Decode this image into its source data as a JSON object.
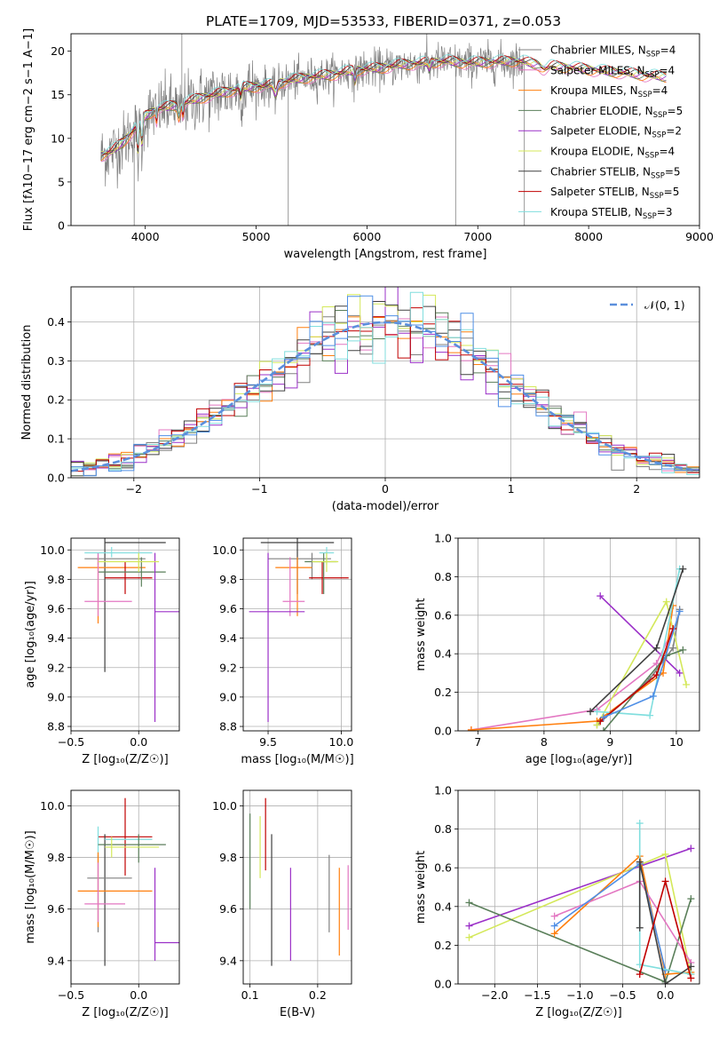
{
  "figure_title": "PLATE=1709, MJD=53533, FIBERID=0371, z=0.053",
  "colors": {
    "Chabrier MILES": "#808080",
    "Salpeter MILES": "#e377c2",
    "Kroupa MILES": "#ff7f0e",
    "Chabrier ELODIE": "#5a7f5a",
    "Salpeter ELODIE": "#9b30c8",
    "Kroupa ELODIE": "#d4e85a",
    "Chabrier STELIB": "#404040",
    "Salpeter STELIB": "#c00000",
    "Kroupa STELIB": "#80dede",
    "gaussian": "#5b8fdc",
    "blue_extra": "#4f8fe6"
  },
  "chart_data": [
    {
      "id": "spectrum",
      "type": "line",
      "xlabel": "wavelength [Angstrom, rest frame]",
      "ylabel_html": "Flux [f<tspan>λ</tspan>10<tspan>−17</tspan> erg cm<tspan>−2</tspan> s<tspan>−1</tspan> A<tspan>−1</tspan>]",
      "ylabel": "Flux [fλ10−17 erg cm−2 s−1 A−1]",
      "xlim": [
        3330,
        9000
      ],
      "ylim": [
        0,
        22
      ],
      "xticks": [
        4000,
        5000,
        6000,
        7000,
        8000,
        9000
      ],
      "yticks": [
        0,
        5,
        10,
        15,
        20
      ],
      "legend_position": "right",
      "legend": [
        {
          "model": "Chabrier MILES",
          "n": "4"
        },
        {
          "model": "Salpeter MILES",
          "n": "4"
        },
        {
          "model": "Kroupa MILES",
          "n": "4"
        },
        {
          "model": "Chabrier ELODIE",
          "n": "5"
        },
        {
          "model": "Salpeter ELODIE",
          "n": "2"
        },
        {
          "model": "Kroupa ELODIE",
          "n": "4"
        },
        {
          "model": "Chabrier STELIB",
          "n": "5"
        },
        {
          "model": "Salpeter STELIB",
          "n": "5"
        },
        {
          "model": "Kroupa STELIB",
          "n": "3"
        }
      ],
      "legend_prefix": ", N",
      "legend_sub": "SSP",
      "continuum": [
        [
          3600,
          8
        ],
        [
          3700,
          8.5
        ],
        [
          3800,
          9.5
        ],
        [
          3900,
          11
        ],
        [
          4000,
          12.5
        ],
        [
          4100,
          13.3
        ],
        [
          4300,
          13.8
        ],
        [
          4500,
          14.6
        ],
        [
          4700,
          15.2
        ],
        [
          4900,
          15.8
        ],
        [
          5100,
          16
        ],
        [
          5300,
          16.6
        ],
        [
          5500,
          17
        ],
        [
          5700,
          17.3
        ],
        [
          5900,
          17.8
        ],
        [
          6100,
          18
        ],
        [
          6300,
          18.4
        ],
        [
          6500,
          18.6
        ],
        [
          6700,
          18.8
        ],
        [
          6900,
          18.6
        ],
        [
          7100,
          18.7
        ],
        [
          7300,
          18.8
        ],
        [
          7400,
          18.8
        ],
        [
          7500,
          18.5
        ],
        [
          7700,
          18.2
        ],
        [
          7900,
          18
        ],
        [
          8100,
          17.7
        ],
        [
          8300,
          17.5
        ],
        [
          8500,
          17.2
        ],
        [
          8700,
          17
        ]
      ],
      "observed_range": [
        3600,
        7420
      ],
      "model_range": [
        3600,
        8700
      ]
    },
    {
      "id": "residuals",
      "type": "histogram",
      "xlabel": "(data-model)/error",
      "ylabel": "Normed distribution",
      "xlim": [
        -2.5,
        2.5
      ],
      "ylim": [
        0,
        0.49
      ],
      "xticks": [
        -2,
        -1,
        0,
        1,
        2
      ],
      "yticks": [
        0.0,
        0.1,
        0.2,
        0.3,
        0.4
      ],
      "legend_label": "𝒩(0, 1)",
      "bin_width": 0.1
    },
    {
      "id": "age_vs_Z",
      "type": "scatter",
      "xlabel": "Z [log₁₀(Z/Z☉)]",
      "ylabel": "age  [log₁₀(age/yr)]",
      "xlim": [
        -0.5,
        0.3
      ],
      "ylim": [
        8.77,
        10.08
      ],
      "xticks": [
        -0.5,
        0.0
      ],
      "yticks": [
        8.8,
        9.0,
        9.2,
        9.4,
        9.6,
        9.8,
        10.0
      ],
      "points": [
        {
          "m": "Chabrier STELIB",
          "x": -0.25,
          "y": 10.05,
          "xe": [
            -0.25,
            0.2
          ],
          "ye": [
            9.17,
            10.09
          ]
        },
        {
          "m": "Chabrier MILES",
          "x": -0.3,
          "y": 9.94,
          "xe": [
            -0.4,
            0.05
          ],
          "ye": [
            9.9,
            9.98
          ]
        },
        {
          "m": "Kroupa MILES",
          "x": -0.3,
          "y": 9.88,
          "xe": [
            -0.45,
            0.05
          ],
          "ye": [
            9.5,
            9.95
          ]
        },
        {
          "m": "Salpeter STELIB",
          "x": -0.1,
          "y": 9.81,
          "xe": [
            -0.25,
            0.1
          ],
          "ye": [
            9.7,
            9.92
          ]
        },
        {
          "m": "Chabrier ELODIE",
          "x": 0.02,
          "y": 9.85,
          "xe": [
            -0.3,
            0.2
          ],
          "ye": [
            9.75,
            9.95
          ]
        },
        {
          "m": "Salpeter MILES",
          "x": -0.3,
          "y": 9.65,
          "xe": [
            -0.4,
            -0.05
          ],
          "ye": [
            9.55,
            9.98
          ]
        },
        {
          "m": "Salpeter ELODIE",
          "x": 0.12,
          "y": 9.58,
          "xe": [
            0.12,
            0.3
          ],
          "ye": [
            8.83,
            9.98
          ]
        },
        {
          "m": "Kroupa STELIB",
          "x": -0.2,
          "y": 9.98,
          "xe": [
            -0.4,
            0.1
          ],
          "ye": [
            9.95,
            10.02
          ]
        },
        {
          "m": "Kroupa ELODIE",
          "x": 0.0,
          "y": 9.92,
          "xe": [
            -0.3,
            0.15
          ],
          "ye": [
            9.85,
            9.98
          ]
        }
      ]
    },
    {
      "id": "age_vs_mass",
      "type": "scatter",
      "xlabel": "mass [log₁₀(M/M☉)]",
      "ylabel": "",
      "xlim": [
        9.33,
        10.07
      ],
      "ylim": [
        8.77,
        10.08
      ],
      "xticks": [
        9.5,
        10.0
      ],
      "yticks": [
        8.8,
        9.0,
        9.2,
        9.4,
        9.6,
        9.8,
        10.0
      ],
      "points": [
        {
          "m": "Chabrier STELIB",
          "x": 9.7,
          "y": 10.05,
          "xe": [
            9.45,
            9.95
          ],
          "ye": [
            9.7,
            10.08
          ]
        },
        {
          "m": "Chabrier MILES",
          "x": 9.8,
          "y": 9.94,
          "xe": [
            9.5,
            9.93
          ],
          "ye": [
            9.8,
            9.98
          ]
        },
        {
          "m": "Kroupa MILES",
          "x": 9.7,
          "y": 9.88,
          "xe": [
            9.55,
            9.8
          ],
          "ye": [
            9.55,
            9.95
          ]
        },
        {
          "m": "Salpeter STELIB",
          "x": 9.87,
          "y": 9.81,
          "xe": [
            9.78,
            10.05
          ],
          "ye": [
            9.7,
            9.92
          ]
        },
        {
          "m": "Chabrier ELODIE",
          "x": 9.88,
          "y": 9.92,
          "xe": [
            9.75,
            9.97
          ],
          "ye": [
            9.7,
            9.98
          ]
        },
        {
          "m": "Salpeter MILES",
          "x": 9.65,
          "y": 9.65,
          "xe": [
            9.6,
            9.75
          ],
          "ye": [
            9.55,
            9.95
          ]
        },
        {
          "m": "Salpeter ELODIE",
          "x": 9.5,
          "y": 9.58,
          "xe": [
            9.37,
            9.75
          ],
          "ye": [
            8.83,
            9.98
          ]
        },
        {
          "m": "Kroupa STELIB",
          "x": 9.9,
          "y": 9.98,
          "xe": [
            9.85,
            9.95
          ],
          "ye": [
            9.9,
            10.02
          ]
        },
        {
          "m": "Kroupa ELODIE",
          "x": 9.9,
          "y": 9.92,
          "xe": [
            9.8,
            9.98
          ],
          "ye": [
            9.85,
            9.98
          ]
        }
      ]
    },
    {
      "id": "weight_vs_age",
      "type": "line",
      "xlabel": "age  [log₁₀(age/yr)]",
      "ylabel": "mass weight",
      "xlim": [
        6.7,
        10.35
      ],
      "ylim": [
        0,
        1.0
      ],
      "xticks": [
        7,
        8,
        9,
        10
      ],
      "yticks": [
        0.0,
        0.2,
        0.4,
        0.6,
        0.8,
        1.0
      ],
      "series": [
        {
          "m": "Salpeter ELODIE",
          "points": [
            [
              8.85,
              0.7
            ],
            [
              10.05,
              0.3
            ]
          ]
        },
        {
          "m": "Salpeter MILES",
          "points": [
            [
              6.9,
              0.005
            ],
            [
              8.8,
              0.11
            ],
            [
              9.7,
              0.35
            ],
            [
              9.95,
              0.53
            ]
          ]
        },
        {
          "m": "Kroupa MILES",
          "points": [
            [
              6.9,
              0.005
            ],
            [
              8.8,
              0.05
            ],
            [
              9.8,
              0.3
            ],
            [
              9.95,
              0.65
            ]
          ]
        },
        {
          "m": "Chabrier MILES",
          "points": [
            [
              8.8,
              0.03
            ],
            [
              9.6,
              0.27
            ],
            [
              9.95,
              0.43
            ],
            [
              10.05,
              0.63
            ]
          ]
        },
        {
          "m": "Kroupa ELODIE",
          "points": [
            [
              8.8,
              0.03
            ],
            [
              9.85,
              0.67
            ],
            [
              10.15,
              0.24
            ]
          ]
        },
        {
          "m": "Kroupa STELIB",
          "points": [
            [
              8.8,
              0.1
            ],
            [
              9.6,
              0.08
            ],
            [
              10.05,
              0.84
            ]
          ]
        },
        {
          "m": "Chabrier ELODIE",
          "points": [
            [
              8.9,
              0.0
            ],
            [
              9.85,
              0.39
            ],
            [
              10.1,
              0.42
            ]
          ]
        },
        {
          "m": "Chabrier STELIB",
          "points": [
            [
              8.7,
              0.1
            ],
            [
              9.7,
              0.43
            ],
            [
              10.1,
              0.84
            ]
          ]
        },
        {
          "m": "Salpeter STELIB",
          "points": [
            [
              8.85,
              0.05
            ],
            [
              9.7,
              0.29
            ],
            [
              9.95,
              0.53
            ]
          ]
        },
        {
          "m": "blue_extra",
          "points": [
            [
              8.9,
              0.07
            ],
            [
              9.65,
              0.18
            ],
            [
              10.05,
              0.62
            ]
          ]
        }
      ]
    },
    {
      "id": "mass_vs_Z",
      "type": "scatter",
      "xlabel": "Z [log₁₀(Z/Z☉)]",
      "ylabel": "mass [log₁₀(M/M☉)]",
      "xlim": [
        -0.5,
        0.3
      ],
      "ylim": [
        9.31,
        10.06
      ],
      "xticks": [
        -0.5,
        0.0
      ],
      "yticks": [
        9.4,
        9.6,
        9.8,
        10.0
      ],
      "points": [
        {
          "m": "Salpeter STELIB",
          "x": -0.1,
          "y": 9.88,
          "xe": [
            -0.3,
            0.1
          ],
          "ye": [
            9.73,
            10.03
          ]
        },
        {
          "m": "Chabrier STELIB",
          "x": -0.25,
          "y": 9.85,
          "xe": [
            -0.3,
            0.2
          ],
          "ye": [
            9.38,
            9.89
          ]
        },
        {
          "m": "Kroupa STELIB",
          "x": -0.3,
          "y": 9.87,
          "xe": [
            -0.25,
            0.1
          ],
          "ye": [
            9.8,
            9.92
          ]
        },
        {
          "m": "Chabrier ELODIE",
          "x": 0.0,
          "y": 9.85,
          "xe": [
            -0.3,
            0.2
          ],
          "ye": [
            9.78,
            9.89
          ]
        },
        {
          "m": "Kroupa ELODIE",
          "x": -0.2,
          "y": 9.84,
          "xe": [
            -0.25,
            0.15
          ],
          "ye": [
            9.8,
            9.88
          ]
        },
        {
          "m": "Chabrier MILES",
          "x": -0.3,
          "y": 9.72,
          "xe": [
            -0.38,
            -0.05
          ],
          "ye": [
            9.51,
            9.81
          ]
        },
        {
          "m": "Kroupa MILES",
          "x": -0.3,
          "y": 9.67,
          "xe": [
            -0.45,
            0.1
          ],
          "ye": [
            9.53,
            9.82
          ]
        },
        {
          "m": "Salpeter MILES",
          "x": -0.3,
          "y": 9.62,
          "xe": [
            -0.4,
            -0.1
          ],
          "ye": [
            9.55,
            9.78
          ]
        },
        {
          "m": "Salpeter ELODIE",
          "x": 0.12,
          "y": 9.47,
          "xe": [
            0.12,
            0.3
          ],
          "ye": [
            9.4,
            9.76
          ]
        }
      ]
    },
    {
      "id": "mass_vs_ebv",
      "type": "scatter",
      "xlabel": "E(B-V)",
      "ylabel": "",
      "xlim": [
        0.09,
        0.25
      ],
      "ylim": [
        9.31,
        10.06
      ],
      "xticks": [
        0.1,
        0.2
      ],
      "yticks": [
        9.4,
        9.6,
        9.8,
        10.0
      ],
      "points": [
        {
          "m": "Chabrier ELODIE",
          "x": 0.1,
          "y": 9.8,
          "ye": [
            9.6,
            9.97
          ]
        },
        {
          "m": "Kroupa ELODIE",
          "x": 0.115,
          "y": 9.85,
          "ye": [
            9.72,
            9.96
          ]
        },
        {
          "m": "Salpeter STELIB",
          "x": 0.123,
          "y": 9.9,
          "ye": [
            9.75,
            10.03
          ]
        },
        {
          "m": "Chabrier STELIB",
          "x": 0.132,
          "y": 9.7,
          "ye": [
            9.38,
            9.89
          ]
        },
        {
          "m": "Salpeter ELODIE",
          "x": 0.16,
          "y": 9.6,
          "ye": [
            9.4,
            9.76
          ]
        },
        {
          "m": "Chabrier MILES",
          "x": 0.217,
          "y": 9.6,
          "ye": [
            9.51,
            9.81
          ]
        },
        {
          "m": "Kroupa MILES",
          "x": 0.232,
          "y": 9.6,
          "ye": [
            9.42,
            9.76
          ]
        },
        {
          "m": "Salpeter MILES",
          "x": 0.245,
          "y": 9.65,
          "ye": [
            9.52,
            9.77
          ]
        }
      ]
    },
    {
      "id": "weight_vs_Z",
      "type": "line",
      "xlabel": "Z [log₁₀(Z/Z☉)]",
      "ylabel": "mass weight",
      "xlim": [
        -2.43,
        0.4
      ],
      "ylim": [
        0,
        1.0
      ],
      "xticks": [
        -2.0,
        -1.5,
        -1.0,
        -0.5,
        0.0
      ],
      "yticks": [
        0.0,
        0.2,
        0.4,
        0.6,
        0.8,
        1.0
      ],
      "series": [
        {
          "m": "Salpeter ELODIE",
          "points": [
            [
              -2.3,
              0.3
            ],
            [
              0.3,
              0.7
            ]
          ]
        },
        {
          "m": "Kroupa ELODIE",
          "points": [
            [
              -2.3,
              0.24
            ],
            [
              0.0,
              0.67
            ],
            [
              0.3,
              0.05
            ]
          ]
        },
        {
          "m": "Chabrier ELODIE",
          "points": [
            [
              -2.3,
              0.42
            ],
            [
              0.0,
              0.01
            ],
            [
              0.3,
              0.44
            ]
          ]
        },
        {
          "m": "Kroupa MILES",
          "points": [
            [
              -1.3,
              0.26
            ],
            [
              -0.3,
              0.66
            ],
            [
              0.0,
              0.05
            ],
            [
              0.3,
              0.06
            ]
          ]
        },
        {
          "m": "Salpeter MILES",
          "points": [
            [
              -1.3,
              0.35
            ],
            [
              -0.3,
              0.53
            ],
            [
              0.3,
              0.11
            ]
          ]
        },
        {
          "m": "blue_extra",
          "points": [
            [
              -1.3,
              0.3
            ],
            [
              -0.3,
              0.62
            ],
            [
              0.0,
              0.07
            ]
          ]
        },
        {
          "m": "Kroupa STELIB",
          "points": [
            [
              -0.3,
              0.83
            ],
            [
              -0.3,
              0.1
            ],
            [
              0.3,
              0.05
            ]
          ]
        },
        {
          "m": "Chabrier STELIB",
          "points": [
            [
              -0.3,
              0.29
            ],
            [
              -0.3,
              0.63
            ],
            [
              0.0,
              0.0
            ],
            [
              0.3,
              0.09
            ]
          ]
        },
        {
          "m": "Salpeter STELIB",
          "points": [
            [
              -0.3,
              0.05
            ],
            [
              0.0,
              0.53
            ],
            [
              0.3,
              0.03
            ]
          ]
        }
      ]
    }
  ]
}
